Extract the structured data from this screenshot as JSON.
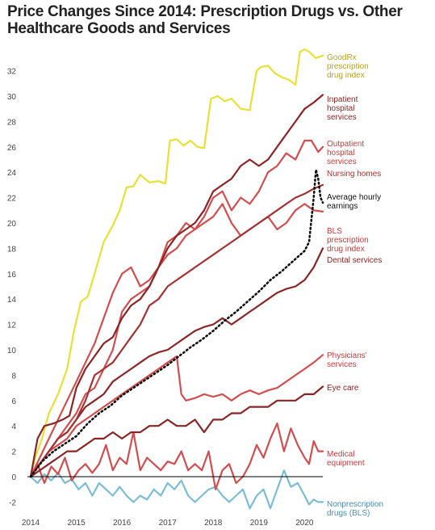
{
  "chart_data": {
    "type": "line",
    "title": "Price Changes Since 2014: Prescription Drugs vs. Other Healthcare Goods and Services",
    "xlabel": "",
    "ylabel": "",
    "x_ticks": [
      "2014",
      "2015",
      "2016",
      "2017",
      "2018",
      "2019",
      "2020"
    ],
    "y_ticks": [
      "-2",
      "0",
      "2",
      "4",
      "6",
      "8",
      "10",
      "12",
      "14",
      "16",
      "18",
      "20",
      "22",
      "24",
      "26",
      "28",
      "30",
      "32"
    ],
    "xlim": [
      2013.95,
      2020.75
    ],
    "ylim": [
      -3,
      34
    ],
    "grid": false,
    "legend": "direct labels at right end of each line",
    "series": [
      {
        "name": "GoodRx prescription drug index",
        "color": "#e8e035",
        "dash": false,
        "x": [
          2014.0,
          2014.1,
          2014.25,
          2014.4,
          2014.6,
          2014.8,
          2014.95,
          2015.1,
          2015.25,
          2015.4,
          2015.6,
          2015.8,
          2015.95,
          2016.1,
          2016.25,
          2016.4,
          2016.5,
          2016.6,
          2016.8,
          2016.95,
          2017.05,
          2017.2,
          2017.35,
          2017.5,
          2017.65,
          2017.8,
          2017.95,
          2018.1,
          2018.25,
          2018.4,
          2018.6,
          2018.8,
          2018.95,
          2019.05,
          2019.2,
          2019.35,
          2019.5,
          2019.65,
          2019.8,
          2019.9,
          2020.0,
          2020.1,
          2020.25,
          2020.4
        ],
        "y": [
          0.1,
          1.5,
          3.0,
          5.0,
          6.5,
          8.5,
          11.5,
          13.8,
          14.2,
          16.0,
          18.5,
          19.8,
          21.0,
          22.8,
          22.9,
          23.8,
          23.5,
          23.2,
          23.3,
          23.1,
          26.5,
          26.6,
          26.1,
          26.5,
          26.0,
          25.9,
          29.8,
          30.0,
          29.6,
          29.8,
          29.0,
          28.9,
          32.0,
          32.3,
          32.4,
          31.8,
          31.5,
          31.3,
          30.9,
          33.5,
          33.7,
          33.5,
          33.0,
          33.2
        ]
      },
      {
        "name": "Inpatient hospital services",
        "color": "#8b2525",
        "dash": false,
        "x": [
          2014.0,
          2014.15,
          2014.3,
          2014.5,
          2014.7,
          2014.85,
          2015.0,
          2015.2,
          2015.4,
          2015.6,
          2015.8,
          2016.0,
          2016.2,
          2016.4,
          2016.6,
          2016.8,
          2017.0,
          2017.2,
          2017.4,
          2017.6,
          2017.8,
          2018.0,
          2018.2,
          2018.4,
          2018.6,
          2018.8,
          2019.0,
          2019.2,
          2019.4,
          2019.6,
          2019.8,
          2020.0,
          2020.2,
          2020.4
        ],
        "y": [
          0.0,
          3.0,
          4.0,
          4.2,
          4.5,
          4.8,
          7.0,
          8.5,
          9.5,
          10.5,
          11.0,
          12.5,
          13.5,
          14.0,
          15.0,
          16.5,
          18.0,
          19.0,
          19.5,
          20.0,
          21.0,
          22.5,
          23.0,
          23.5,
          24.5,
          25.0,
          24.5,
          25.0,
          26.0,
          27.0,
          28.0,
          29.0,
          29.5,
          30.1
        ]
      },
      {
        "name": "Outpatient hospital services",
        "color": "#d24e4e",
        "dash": false,
        "x": [
          2014.0,
          2014.2,
          2014.4,
          2014.6,
          2014.8,
          2015.0,
          2015.2,
          2015.4,
          2015.6,
          2015.8,
          2016.0,
          2016.2,
          2016.4,
          2016.6,
          2016.8,
          2017.0,
          2017.2,
          2017.4,
          2017.6,
          2017.8,
          2018.0,
          2018.2,
          2018.4,
          2018.6,
          2018.8,
          2019.0,
          2019.2,
          2019.4,
          2019.6,
          2019.8,
          2020.0,
          2020.15,
          2020.3,
          2020.4
        ],
        "y": [
          0.0,
          1.0,
          2.0,
          3.0,
          4.0,
          5.0,
          6.5,
          7.0,
          8.5,
          10.0,
          13.0,
          14.0,
          14.5,
          15.0,
          16.5,
          18.5,
          19.0,
          20.0,
          19.5,
          20.5,
          22.0,
          22.5,
          21.0,
          22.0,
          21.5,
          22.5,
          24.0,
          24.5,
          25.5,
          25.0,
          26.5,
          26.5,
          25.6,
          26.0
        ]
      },
      {
        "name": "Nursing homes",
        "color": "#a33232",
        "dash": false,
        "x": [
          2014.0,
          2014.2,
          2014.4,
          2014.6,
          2014.8,
          2015.0,
          2015.2,
          2015.4,
          2015.6,
          2015.8,
          2016.0,
          2016.2,
          2016.4,
          2016.6,
          2016.8,
          2017.0,
          2017.2,
          2017.4,
          2017.6,
          2017.8,
          2018.0,
          2018.2,
          2018.4,
          2018.6,
          2018.8,
          2019.0,
          2019.2,
          2019.4,
          2019.6,
          2019.8,
          2020.0,
          2020.2,
          2020.4
        ],
        "y": [
          0.0,
          1.0,
          2.0,
          3.0,
          3.5,
          4.5,
          6.0,
          8.0,
          8.5,
          9.0,
          10.0,
          11.0,
          12.0,
          13.5,
          14.0,
          15.0,
          15.5,
          16.0,
          16.5,
          17.0,
          17.5,
          18.0,
          18.5,
          19.0,
          19.5,
          20.0,
          20.5,
          21.0,
          21.5,
          22.0,
          22.3,
          22.7,
          23.0
        ]
      },
      {
        "name": "Average hourly earnings",
        "color": "#111111",
        "dash": true,
        "x": [
          2014.0,
          2014.25,
          2014.5,
          2014.75,
          2015.0,
          2015.25,
          2015.5,
          2015.75,
          2016.0,
          2016.25,
          2016.5,
          2016.75,
          2017.0,
          2017.25,
          2017.5,
          2017.75,
          2018.0,
          2018.25,
          2018.5,
          2018.75,
          2019.0,
          2019.25,
          2019.5,
          2019.75,
          2020.0,
          2020.1,
          2020.2,
          2020.25,
          2020.3,
          2020.35,
          2020.4
        ],
        "y": [
          0.0,
          1.2,
          2.0,
          2.6,
          3.2,
          4.2,
          5.0,
          5.6,
          6.4,
          7.0,
          7.6,
          8.2,
          8.8,
          9.5,
          10.2,
          10.8,
          11.5,
          12.3,
          13.0,
          13.8,
          14.6,
          15.5,
          16.2,
          17.0,
          17.8,
          18.5,
          22.0,
          24.2,
          23.5,
          22.0,
          21.6
        ]
      },
      {
        "name": "BLS prescription drug index",
        "color": "#d24e4e",
        "dash": false,
        "x": [
          2014.0,
          2014.2,
          2014.4,
          2014.6,
          2014.8,
          2015.0,
          2015.2,
          2015.4,
          2015.6,
          2015.8,
          2016.0,
          2016.2,
          2016.4,
          2016.6,
          2016.8,
          2017.0,
          2017.2,
          2017.4,
          2017.6,
          2017.8,
          2018.0,
          2018.2,
          2018.4,
          2018.6,
          2018.8,
          2019.0,
          2019.2,
          2019.4,
          2019.6,
          2019.8,
          2020.0,
          2020.2,
          2020.4
        ],
        "y": [
          0.0,
          1.5,
          3.0,
          4.5,
          6.0,
          7.5,
          9.0,
          10.5,
          12.5,
          14.5,
          16.0,
          16.5,
          15.0,
          15.5,
          16.5,
          17.5,
          18.0,
          19.0,
          19.5,
          20.0,
          20.5,
          21.5,
          20.0,
          19.0,
          19.5,
          20.0,
          20.5,
          19.5,
          20.0,
          21.0,
          21.5,
          21.0,
          20.9
        ]
      },
      {
        "name": "Dental services",
        "color": "#8b2525",
        "dash": false,
        "x": [
          2014.0,
          2014.2,
          2014.4,
          2014.6,
          2014.8,
          2015.0,
          2015.2,
          2015.4,
          2015.6,
          2015.8,
          2016.0,
          2016.2,
          2016.4,
          2016.6,
          2016.8,
          2017.0,
          2017.2,
          2017.4,
          2017.6,
          2017.8,
          2018.0,
          2018.2,
          2018.4,
          2018.6,
          2018.8,
          2019.0,
          2019.2,
          2019.4,
          2019.6,
          2019.8,
          2020.0,
          2020.2,
          2020.4
        ],
        "y": [
          0.0,
          1.0,
          2.0,
          3.0,
          3.5,
          4.5,
          5.5,
          6.0,
          6.5,
          7.5,
          8.0,
          8.5,
          9.0,
          9.5,
          9.8,
          10.0,
          10.5,
          11.0,
          11.5,
          11.8,
          12.0,
          12.5,
          12.0,
          12.5,
          13.0,
          13.5,
          14.0,
          14.5,
          14.8,
          15.0,
          15.5,
          16.5,
          18.0
        ]
      },
      {
        "name": "Physicians' services",
        "color": "#d24e4e",
        "dash": false,
        "x": [
          2014.0,
          2014.2,
          2014.4,
          2014.6,
          2014.8,
          2015.0,
          2015.2,
          2015.4,
          2015.6,
          2015.8,
          2016.0,
          2016.2,
          2016.4,
          2016.6,
          2016.8,
          2017.0,
          2017.2,
          2017.3,
          2017.4,
          2017.6,
          2017.8,
          2018.0,
          2018.2,
          2018.4,
          2018.6,
          2018.8,
          2019.0,
          2019.2,
          2019.4,
          2019.6,
          2019.8,
          2020.0,
          2020.2,
          2020.4
        ],
        "y": [
          0.0,
          1.0,
          2.0,
          2.5,
          3.0,
          4.0,
          4.5,
          5.0,
          5.5,
          6.0,
          6.5,
          7.0,
          7.5,
          8.0,
          8.5,
          9.0,
          9.5,
          6.5,
          6.0,
          6.2,
          6.5,
          6.3,
          6.5,
          6.0,
          6.5,
          6.8,
          6.5,
          6.8,
          7.0,
          7.5,
          8.0,
          8.5,
          9.0,
          9.6
        ]
      },
      {
        "name": "Eye care",
        "color": "#8b2525",
        "dash": false,
        "x": [
          2014.0,
          2014.2,
          2014.4,
          2014.6,
          2014.8,
          2015.0,
          2015.2,
          2015.4,
          2015.6,
          2015.8,
          2016.0,
          2016.2,
          2016.4,
          2016.6,
          2016.8,
          2017.0,
          2017.2,
          2017.4,
          2017.6,
          2017.8,
          2018.0,
          2018.2,
          2018.4,
          2018.6,
          2018.8,
          2019.0,
          2019.2,
          2019.4,
          2019.6,
          2019.8,
          2020.0,
          2020.2,
          2020.4
        ],
        "y": [
          0.0,
          0.5,
          1.0,
          1.5,
          2.0,
          2.0,
          2.5,
          3.0,
          3.0,
          3.5,
          3.0,
          3.5,
          3.5,
          4.0,
          4.0,
          4.5,
          4.0,
          4.0,
          4.5,
          3.5,
          4.5,
          4.5,
          5.0,
          5.0,
          5.5,
          5.5,
          5.5,
          6.0,
          6.0,
          6.0,
          6.5,
          6.5,
          7.1
        ]
      },
      {
        "name": "Medical equipment",
        "color": "#d24e4e",
        "dash": false,
        "x": [
          2014.0,
          2014.15,
          2014.3,
          2014.45,
          2014.6,
          2014.75,
          2014.9,
          2015.05,
          2015.2,
          2015.35,
          2015.5,
          2015.65,
          2015.8,
          2015.95,
          2016.1,
          2016.25,
          2016.4,
          2016.55,
          2016.7,
          2016.85,
          2017.0,
          2017.15,
          2017.3,
          2017.45,
          2017.6,
          2017.75,
          2017.9,
          2018.05,
          2018.2,
          2018.35,
          2018.5,
          2018.65,
          2018.8,
          2018.95,
          2019.1,
          2019.25,
          2019.4,
          2019.55,
          2019.7,
          2019.85,
          2020.0,
          2020.1,
          2020.2,
          2020.3,
          2020.4
        ],
        "y": [
          0.0,
          1.0,
          -0.5,
          0.8,
          0.2,
          1.5,
          -0.3,
          0.5,
          1.0,
          0.3,
          1.0,
          2.5,
          0.5,
          1.5,
          1.0,
          3.5,
          0.5,
          1.5,
          1.0,
          0.5,
          1.2,
          1.0,
          2.0,
          0.5,
          1.0,
          0.5,
          2.0,
          -1.0,
          0.5,
          1.0,
          -0.5,
          0.0,
          1.0,
          2.5,
          1.5,
          3.0,
          4.2,
          2.0,
          3.8,
          2.5,
          1.5,
          1.0,
          2.8,
          2.0,
          2.0
        ]
      },
      {
        "name": "Nonprescription drugs (BLS)",
        "color": "#7bbcd8",
        "dash": false,
        "x": [
          2014.0,
          2014.15,
          2014.3,
          2014.45,
          2014.6,
          2014.75,
          2014.9,
          2015.05,
          2015.2,
          2015.35,
          2015.5,
          2015.65,
          2015.8,
          2015.95,
          2016.1,
          2016.25,
          2016.4,
          2016.55,
          2016.7,
          2016.85,
          2017.0,
          2017.15,
          2017.3,
          2017.45,
          2017.6,
          2017.75,
          2017.9,
          2018.05,
          2018.2,
          2018.35,
          2018.5,
          2018.65,
          2018.8,
          2018.95,
          2019.1,
          2019.25,
          2019.4,
          2019.55,
          2019.7,
          2019.85,
          2020.0,
          2020.1,
          2020.2,
          2020.3,
          2020.4
        ],
        "y": [
          0.0,
          -0.5,
          0.2,
          -0.3,
          0.3,
          -0.5,
          -0.2,
          -1.0,
          -0.5,
          -1.5,
          -0.5,
          -1.0,
          -1.5,
          -0.8,
          -1.5,
          -2.0,
          -1.5,
          -1.8,
          -1.0,
          -1.5,
          -0.5,
          -1.0,
          -0.3,
          -1.5,
          -2.0,
          -1.5,
          -1.0,
          -0.8,
          -1.5,
          -2.0,
          -1.5,
          -1.0,
          -2.5,
          -1.5,
          -1.0,
          -2.5,
          -1.0,
          0.5,
          -0.8,
          -0.5,
          -1.5,
          -2.2,
          -1.8,
          -2.0,
          -2.0
        ]
      }
    ]
  }
}
